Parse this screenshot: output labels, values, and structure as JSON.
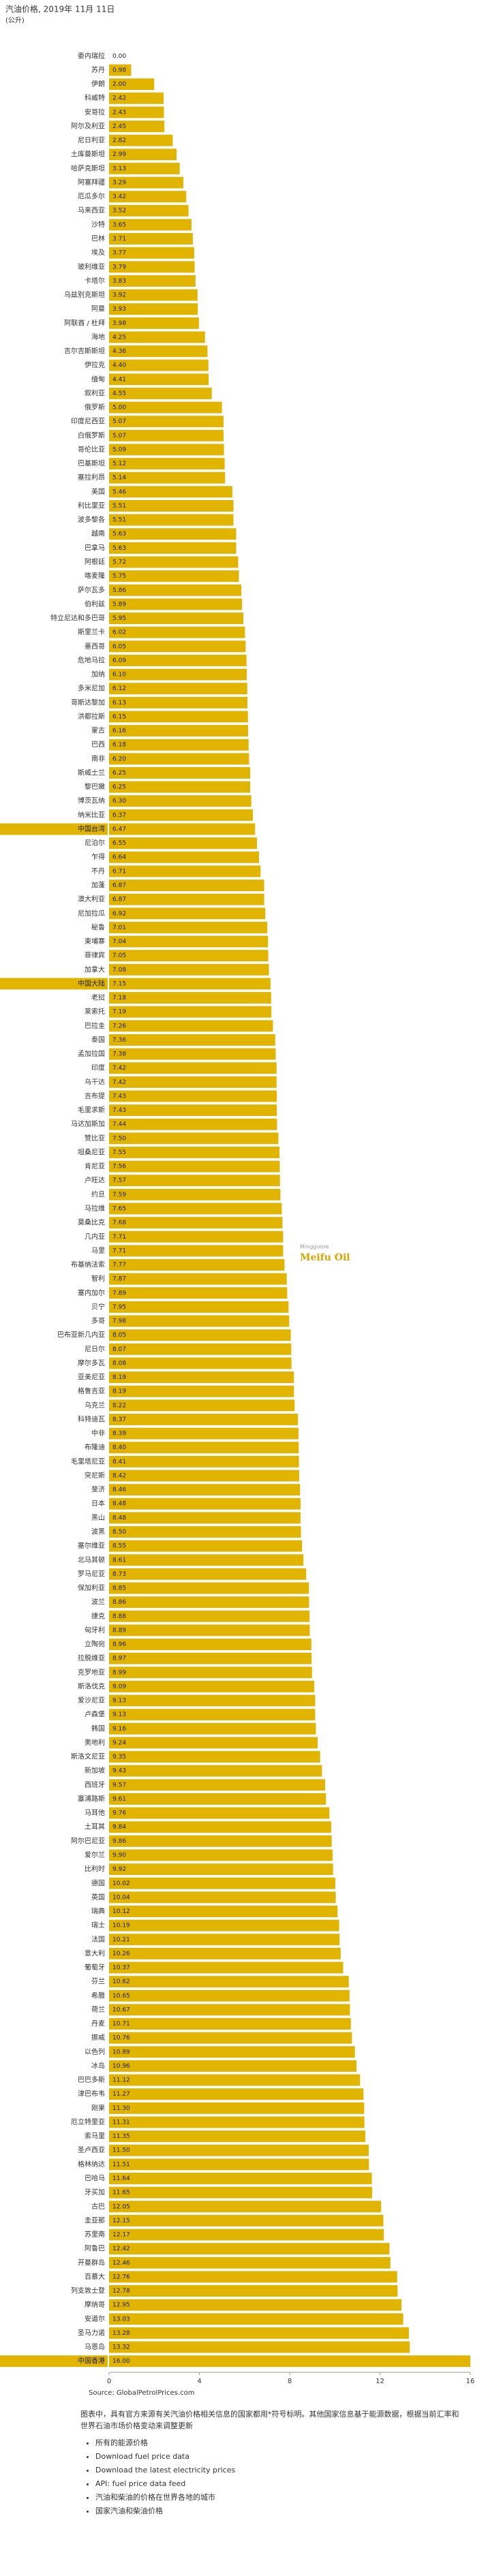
{
  "chart_data": {
    "type": "hbar",
    "title": "汽油价格, 2019年 11月 11日",
    "subtitle": "(公升)",
    "source": "Source: GlobalPetrolPrices.com",
    "watermark": [
      "Mingguore",
      "Meifu Oil"
    ],
    "color": "#e0b400",
    "highlight_color": "#e0b400",
    "highlight": [
      "中国台湾",
      "中国大陆",
      "中国香港"
    ],
    "categories": [
      "委内瑞拉",
      "苏丹",
      "伊朗",
      "科威特",
      "安哥拉",
      "阿尔及利亚",
      "尼日利亚",
      "土库曼斯坦",
      "哈萨克斯坦",
      "阿塞拜疆",
      "厄瓜多尔",
      "马来西亚",
      "沙特",
      "巴林",
      "埃及",
      "玻利维亚",
      "卡塔尔",
      "乌兹别克斯坦",
      "阿曼",
      "阿联酋 / 杜拜",
      "海地",
      "吉尔吉斯斯坦",
      "伊拉克",
      "缅甸",
      "叙利亚",
      "俄罗斯",
      "印度尼西亚",
      "白俄罗斯",
      "哥伦比亚",
      "巴基斯坦",
      "塞拉利昂",
      "美国",
      "利比里亚",
      "波多黎各",
      "越南",
      "巴拿马",
      "阿根廷",
      "喀麦隆",
      "萨尔瓦多",
      "伯利兹",
      "特立尼达和多巴哥",
      "斯里兰卡",
      "墨西哥",
      "危地马拉",
      "加纳",
      "多米尼加",
      "哥斯达黎加",
      "洪都拉斯",
      "蒙古",
      "巴西",
      "南非",
      "斯威士兰",
      "黎巴嫩",
      "博茨瓦纳",
      "纳米比亚",
      "中国台湾",
      "尼泊尔",
      "乍得",
      "不丹",
      "加蓬",
      "澳大利亚",
      "尼加拉瓜",
      "秘鲁",
      "柬埔寨",
      "菲律宾",
      "加拿大",
      "中国大陆",
      "老挝",
      "莱索托",
      "巴拉圭",
      "泰国",
      "孟加拉国",
      "印度",
      "乌干达",
      "吉布提",
      "毛里求斯",
      "马达加斯加",
      "赞比亚",
      "坦桑尼亚",
      "肯尼亚",
      "卢旺达",
      "约旦",
      "马拉维",
      "莫桑比克",
      "几内亚",
      "马里",
      "布基纳法索",
      "智利",
      "塞内加尔",
      "贝宁",
      "多哥",
      "巴布亚新几内亚",
      "尼日尔",
      "摩尔多瓦",
      "亚美尼亚",
      "格鲁吉亚",
      "乌克兰",
      "科特迪瓦",
      "中非",
      "布隆迪",
      "毛里塔尼亚",
      "突尼斯",
      "斐济",
      "日本",
      "黑山",
      "波黑",
      "塞尔维亚",
      "北马其顿",
      "罗马尼亚",
      "保加利亚",
      "波兰",
      "捷克",
      "匈牙利",
      "立陶宛",
      "拉脱维亚",
      "克罗地亚",
      "斯洛伐克",
      "爱沙尼亚",
      "卢森堡",
      "韩国",
      "奥地利",
      "斯洛文尼亚",
      "新加坡",
      "西班牙",
      "塞浦路斯",
      "马耳他",
      "土耳其",
      "阿尔巴尼亚",
      "爱尔兰",
      "比利时",
      "德国",
      "英国",
      "瑞典",
      "瑞士",
      "法国",
      "意大利",
      "葡萄牙",
      "芬兰",
      "希腊",
      "荷兰",
      "丹麦",
      "挪威",
      "以色列",
      "冰岛",
      "巴巴多斯",
      "津巴布韦",
      "刚果",
      "厄立特里亚",
      "索马里",
      "圣卢西亚",
      "格林纳达",
      "巴哈马",
      "牙买加",
      "古巴",
      "圭亚那",
      "苏里南",
      "阿鲁巴",
      "开曼群岛",
      "百慕大",
      "列支敦士登",
      "摩纳哥",
      "安道尔",
      "圣马力诺",
      "马恩岛",
      "中国香港"
    ],
    "values": [
      0,
      0.98,
      2,
      2.42,
      2.43,
      2.45,
      2.82,
      2.99,
      3.13,
      3.29,
      3.42,
      3.52,
      3.65,
      3.71,
      3.77,
      3.79,
      3.83,
      3.92,
      3.93,
      3.98,
      4.25,
      4.36,
      4.4,
      4.41,
      4.55,
      5,
      5.07,
      5.07,
      5.09,
      5.12,
      5.14,
      5.46,
      5.51,
      5.51,
      5.63,
      5.63,
      5.72,
      5.75,
      5.86,
      5.89,
      5.95,
      6.02,
      6.05,
      6.09,
      6.1,
      6.12,
      6.13,
      6.15,
      6.16,
      6.18,
      6.2,
      6.25,
      6.25,
      6.3,
      6.37,
      6.47,
      6.55,
      6.64,
      6.71,
      6.87,
      6.87,
      6.92,
      7.01,
      7.04,
      7.05,
      7.08,
      7.15,
      7.18,
      7.19,
      7.26,
      7.36,
      7.38,
      7.42,
      7.42,
      7.43,
      7.43,
      7.44,
      7.5,
      7.55,
      7.56,
      7.57,
      7.59,
      7.65,
      7.68,
      7.71,
      7.71,
      7.77,
      7.87,
      7.89,
      7.95,
      7.98,
      8.05,
      8.07,
      8.08,
      8.19,
      8.19,
      8.22,
      8.37,
      8.39,
      8.4,
      8.41,
      8.42,
      8.46,
      8.48,
      8.48,
      8.5,
      8.55,
      8.61,
      8.73,
      8.85,
      8.86,
      8.88,
      8.89,
      8.96,
      8.97,
      8.99,
      9.09,
      9.13,
      9.13,
      9.16,
      9.24,
      9.35,
      9.43,
      9.57,
      9.61,
      9.76,
      9.84,
      9.86,
      9.9,
      9.92,
      10.02,
      10.04,
      10.12,
      10.19,
      10.21,
      10.26,
      10.37,
      10.62,
      10.65,
      10.67,
      10.71,
      10.76,
      10.89,
      10.96,
      11.12,
      11.27,
      11.3,
      11.31,
      11.35,
      11.5,
      11.51,
      11.64,
      11.65,
      12.05,
      12.15,
      12.17,
      12.42,
      12.46,
      12.76,
      12.78,
      12.95,
      13.03,
      13.28,
      13.32,
      16
    ],
    "value_labels": [
      "0.00",
      "0.98",
      "2.00",
      "2.42",
      "2.43",
      "2.45",
      "2.82",
      "2.99",
      "3.13",
      "3.29",
      "3.42",
      "3.52",
      "3.65",
      "3.71",
      "3.77",
      "3.79",
      "3.83",
      "3.92",
      "3.93",
      "3.98",
      "4.25",
      "4.36",
      "4.40",
      "4.41",
      "4.55",
      "5.00",
      "5.07",
      "5.07",
      "5.09",
      "5.12",
      "5.14",
      "5.46",
      "5.51",
      "5.51",
      "5.63",
      "5.63",
      "5.72",
      "5.75",
      "5.86",
      "5.89",
      "5.95",
      "6.02",
      "6.05",
      "6.09",
      "6.10",
      "6.12",
      "6.13",
      "6.15",
      "6.16",
      "6.18",
      "6.20",
      "6.25",
      "6.25",
      "6.30",
      "6.37",
      "6.47",
      "6.55",
      "6.64",
      "6.71",
      "6.87",
      "6.87",
      "6.92",
      "7.01",
      "7.04",
      "7.05",
      "7.08",
      "7.15",
      "7.18",
      "7.19",
      "7.26",
      "7.36",
      "7.38",
      "7.42",
      "7.42",
      "7.43",
      "7.43",
      "7.44",
      "7.50",
      "7.55",
      "7.56",
      "7.57",
      "7.59",
      "7.65",
      "7.68",
      "7.71",
      "7.71",
      "7.77",
      "7.87",
      "7.89",
      "7.95",
      "7.98",
      "8.05",
      "8.07",
      "8.08",
      "8.19",
      "8.19",
      "8.22",
      "8.37",
      "8.39",
      "8.40",
      "8.41",
      "8.42",
      "8.46",
      "8.48",
      "8.48",
      "8.50",
      "8.55",
      "8.61",
      "8.73",
      "8.85",
      "8.86",
      "8.88",
      "8.89",
      "8.96",
      "8.97",
      "8.99",
      "9.09",
      "9.13",
      "9.13",
      "9.16",
      "9.24",
      "9.35",
      "9.43",
      "9.57",
      "9.61",
      "9.76",
      "9.84",
      "9.86",
      "9.90",
      "9.92",
      "10.02",
      "10.04",
      "10.12",
      "10.19",
      "10.21",
      "10.26",
      "10.37",
      "10.62",
      "10.65",
      "10.67",
      "10.71",
      "10.76",
      "10.89",
      "10.96",
      "11.12",
      "11.27",
      "11.30",
      "11.31",
      "11.35",
      "11.50",
      "11.51",
      "11.64",
      "11.65",
      "12.05",
      "12.15",
      "12.17",
      "12.42",
      "12.46",
      "12.76",
      "12.78",
      "12.95",
      "13.03",
      "13.28",
      "13.32",
      "16.00"
    ],
    "xlim": [
      0,
      16
    ],
    "xticks": [
      0,
      4,
      8,
      12,
      16
    ]
  },
  "notes": {
    "text": "图表中，具有官方来源有关汽油价格相关信息的国家都用*符号标明。其他国家信息基于能源数据，根据当前汇率和世界石油市场价格变动来调整更新",
    "links": [
      "所有的能源价格",
      "Download fuel price data",
      "Download the latest electricity prices",
      "API: fuel price data feed",
      "汽油和柴油的价格在世界各地的城市",
      "国家汽油和柴油价格"
    ]
  }
}
